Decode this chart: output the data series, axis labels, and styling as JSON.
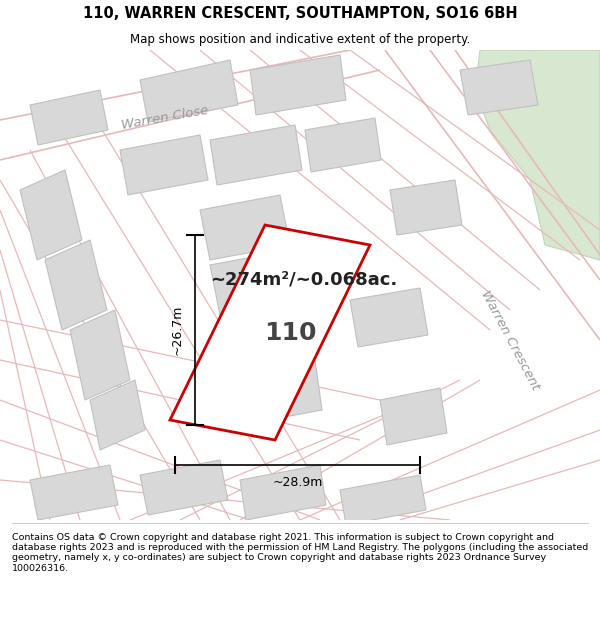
{
  "title": "110, WARREN CRESCENT, SOUTHAMPTON, SO16 6BH",
  "subtitle": "Map shows position and indicative extent of the property.",
  "footer": "Contains OS data © Crown copyright and database right 2021. This information is subject to Crown copyright and database rights 2023 and is reproduced with the permission of HM Land Registry. The polygons (including the associated geometry, namely x, y co-ordinates) are subject to Crown copyright and database rights 2023 Ordnance Survey 100026316.",
  "area_text": "~274m²/~0.068ac.",
  "property_label": "110",
  "dim_width": "~28.9m",
  "dim_height": "~26.7m",
  "map_bg": "#f2f0f0",
  "road_color": "#e8b8b8",
  "building_fill": "#d8d8d8",
  "building_edge": "#c0c0c0",
  "green_fill": "#d8e8d0",
  "green_edge": "#c0d4b8",
  "warren_close_label": "Warren Close",
  "warren_crescent_label": "Warren Crescent"
}
